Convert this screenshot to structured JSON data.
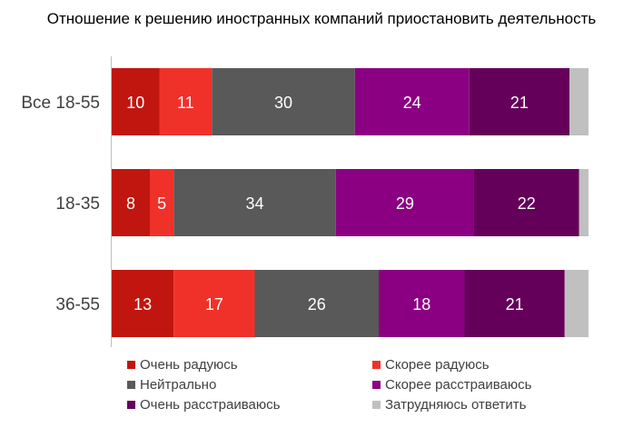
{
  "chart_data": {
    "type": "bar",
    "orientation": "horizontal",
    "stacked": true,
    "title": "Отношение к решению иностранных компаний приостановить деятельность",
    "categories": [
      "Все 18-55",
      "18-35",
      "36-55"
    ],
    "xlim": [
      0,
      100
    ],
    "grid": false,
    "legend_position": "bottom",
    "series": [
      {
        "name": "Очень радуюсь",
        "color": "#c0160f",
        "values": [
          10,
          8,
          13
        ]
      },
      {
        "name": "Скорее радуюсь",
        "color": "#f0312a",
        "values": [
          11,
          5,
          17
        ]
      },
      {
        "name": "Нейтрально",
        "color": "#595959",
        "values": [
          30,
          34,
          26
        ]
      },
      {
        "name": "Скорее расстраиваюсь",
        "color": "#8b0083",
        "values": [
          24,
          29,
          18
        ]
      },
      {
        "name": "Очень расстраиваюсь",
        "color": "#640059",
        "values": [
          21,
          22,
          21
        ]
      },
      {
        "name": "Затрудняюсь ответить",
        "color": "#c0c0c0",
        "values": [
          4,
          2,
          5
        ]
      }
    ],
    "value_label_color": "#ffffff"
  }
}
